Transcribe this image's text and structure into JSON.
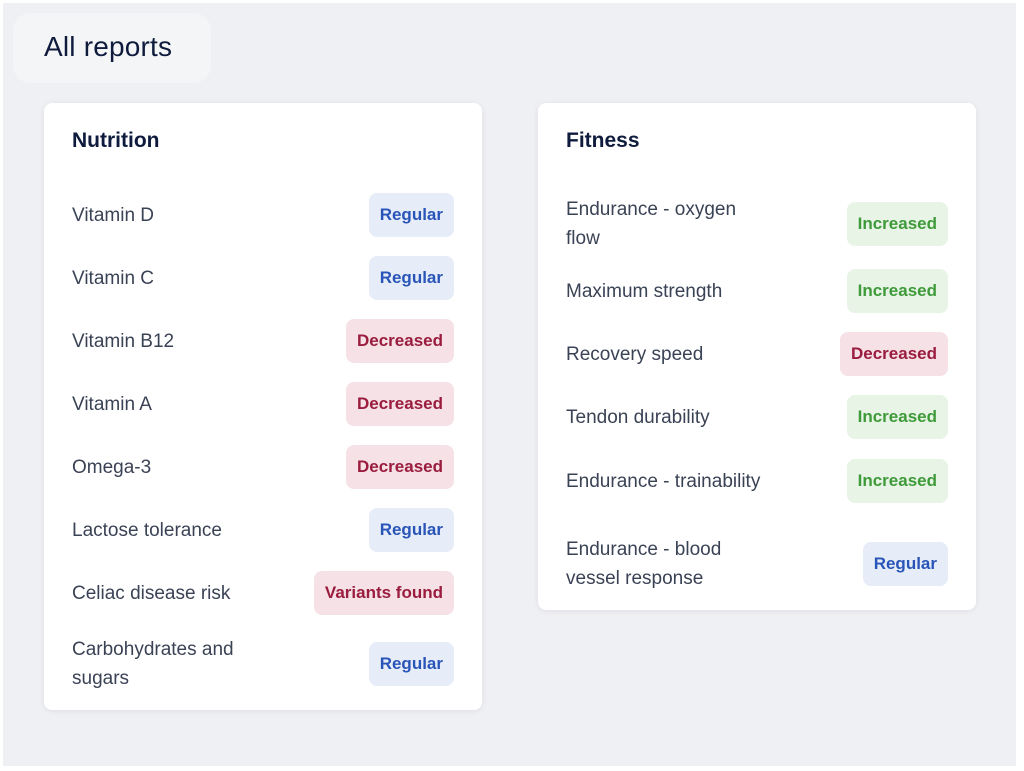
{
  "page": {
    "title": "All reports"
  },
  "colors": {
    "regular_bg": "#e6edf8",
    "regular_fg": "#2a55b8",
    "decreased_bg": "#f5e1e6",
    "decreased_fg": "#9a1c3e",
    "increased_bg": "#e7f4e6",
    "increased_fg": "#3f9a3a"
  },
  "nutrition": {
    "title": "Nutrition",
    "items": [
      {
        "label": "Vitamin D",
        "status": "Regular",
        "kind": "regular"
      },
      {
        "label": "Vitamin C",
        "status": "Regular",
        "kind": "regular"
      },
      {
        "label": "Vitamin B12",
        "status": "Decreased",
        "kind": "decreased"
      },
      {
        "label": "Vitamin A",
        "status": "Decreased",
        "kind": "decreased"
      },
      {
        "label": "Omega-3",
        "status": "Decreased",
        "kind": "decreased"
      },
      {
        "label": "Lactose tolerance",
        "status": "Regular",
        "kind": "regular"
      },
      {
        "label": "Celiac disease risk",
        "status": "Variants found",
        "kind": "variants"
      },
      {
        "label": "Carbohydrates and sugars",
        "status": "Regular",
        "kind": "regular"
      }
    ]
  },
  "fitness": {
    "title": "Fitness",
    "items": [
      {
        "label": "Endurance - oxygen flow",
        "status": "Increased",
        "kind": "increased"
      },
      {
        "label": "Maximum strength",
        "status": "Increased",
        "kind": "increased"
      },
      {
        "label": "Recovery speed",
        "status": "Decreased",
        "kind": "decreased"
      },
      {
        "label": "Tendon durability",
        "status": "Increased",
        "kind": "increased"
      },
      {
        "label": "Endurance - trainability",
        "status": "Increased",
        "kind": "increased"
      },
      {
        "label": "Endurance - blood vessel response",
        "status": "Regular",
        "kind": "regular"
      }
    ]
  }
}
